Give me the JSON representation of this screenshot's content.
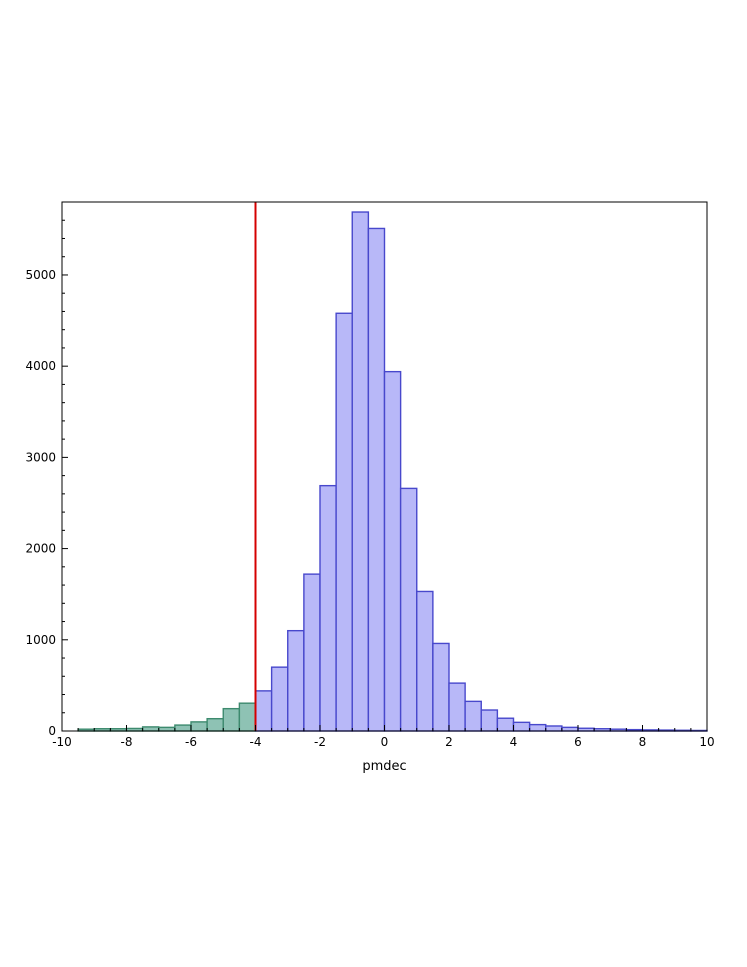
{
  "chart_data": {
    "type": "bar",
    "xlabel": "pmdec",
    "ylabel": "",
    "xlim": [
      -10,
      10
    ],
    "ylim": [
      0,
      5800
    ],
    "x_ticks": [
      -10,
      -8,
      -6,
      -4,
      -2,
      0,
      2,
      4,
      6,
      8,
      10
    ],
    "x_tick_labels": [
      "-10",
      "-8",
      "-6",
      "-4",
      "-2",
      "0",
      "2",
      "4",
      "6",
      "8",
      "10"
    ],
    "y_ticks": [
      0,
      1000,
      2000,
      3000,
      4000,
      5000
    ],
    "y_tick_labels": [
      "0",
      "1000",
      "2000",
      "3000",
      "4000",
      "5000"
    ],
    "bin_width": 0.5,
    "threshold": -4,
    "threshold_color": "#d40000",
    "series": [
      {
        "bin_starts": [
          -9.5,
          -9.0,
          -8.5,
          -8.0,
          -7.5,
          -7.0,
          -6.5,
          -6.0,
          -5.5,
          -5.0,
          -4.5
        ],
        "values": [
          20,
          25,
          25,
          28,
          45,
          40,
          65,
          100,
          135,
          245,
          305
        ],
        "fill": "#8ec2b4",
        "stroke": "#3d8a6e"
      },
      {
        "bin_starts": [
          -4.0,
          -3.5,
          -3.0,
          -2.5,
          -2.0,
          -1.5,
          -1.0,
          -0.5,
          0.0,
          0.5,
          1.0,
          1.5,
          2.0,
          2.5,
          3.0,
          3.5,
          4.0,
          4.5,
          5.0,
          5.5,
          6.0,
          6.5,
          7.0,
          7.5,
          8.0,
          8.5,
          9.0,
          9.5
        ],
        "values": [
          440,
          700,
          1100,
          1720,
          2690,
          4580,
          5690,
          5510,
          3940,
          2660,
          1530,
          960,
          525,
          325,
          230,
          140,
          95,
          70,
          55,
          40,
          30,
          25,
          20,
          15,
          12,
          10,
          8,
          6
        ],
        "fill": "#b8b8f8",
        "stroke": "#4848cc"
      }
    ]
  }
}
